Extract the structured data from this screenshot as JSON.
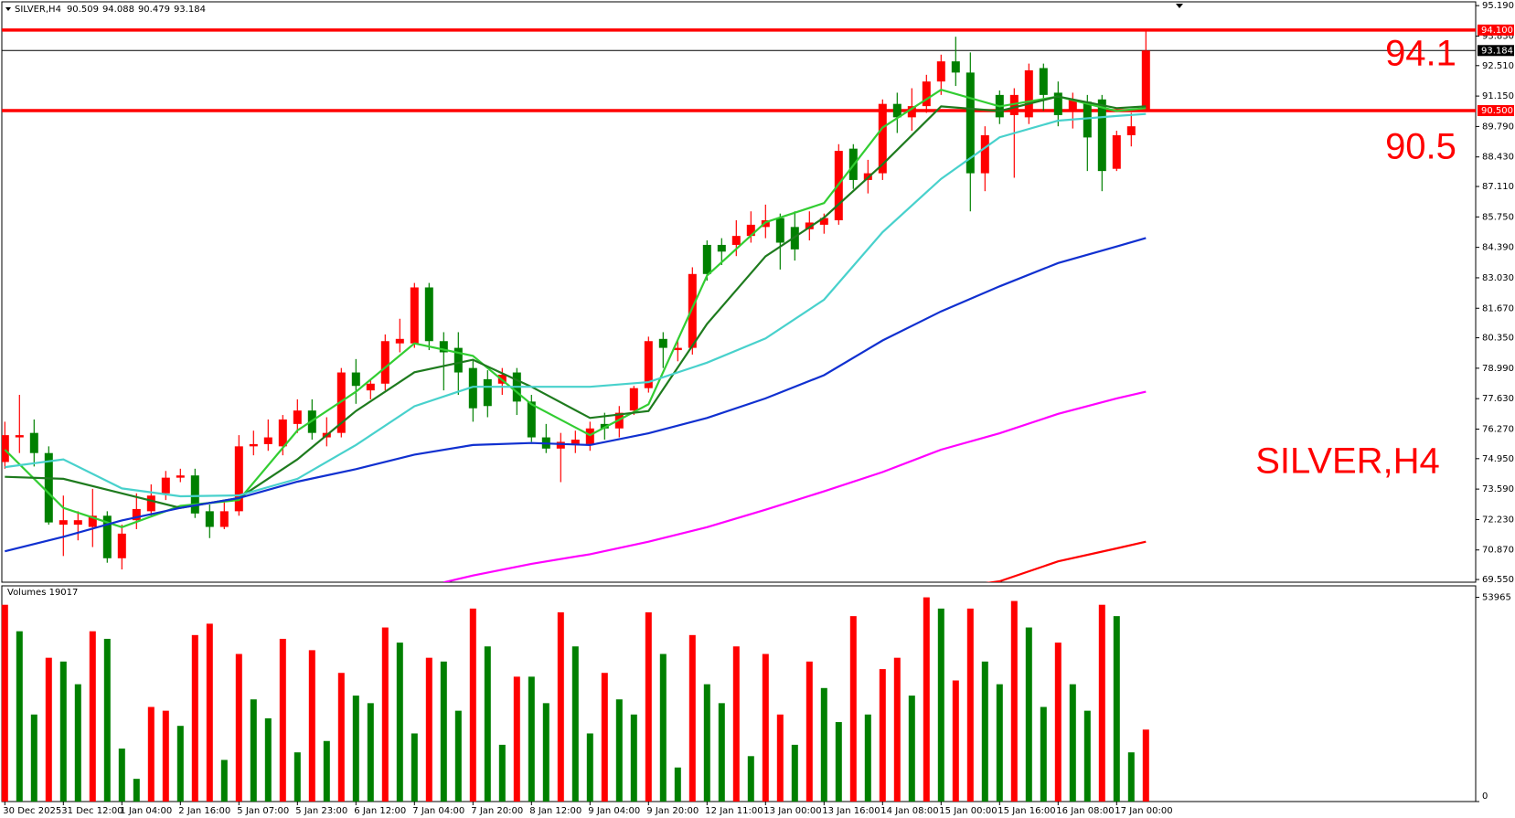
{
  "chart_data": {
    "type": "candlestick",
    "symbol": "SILVER,H4",
    "categories": [
      "30 Dec 2025",
      null,
      null,
      null,
      "31 Dec 12:00",
      null,
      null,
      null,
      "1 Jan 04:00",
      null,
      null,
      null,
      "2 Jan 16:00",
      null,
      null,
      null,
      "5 Jan 07:00",
      null,
      null,
      null,
      "5 Jan 23:00",
      null,
      null,
      null,
      "6 Jan 12:00",
      null,
      null,
      null,
      "7 Jan 04:00",
      null,
      null,
      null,
      "7 Jan 20:00",
      null,
      null,
      null,
      "8 Jan 12:00",
      null,
      null,
      null,
      "9 Jan 04:00",
      null,
      null,
      null,
      "9 Jan 20:00",
      null,
      null,
      null,
      "12 Jan 11:00",
      null,
      null,
      null,
      "13 Jan 00:00",
      null,
      null,
      null,
      "13 Jan 16:00",
      null,
      null,
      null,
      "14 Jan 08:00",
      null,
      null,
      null,
      "15 Jan 00:00",
      null,
      null,
      null,
      "15 Jan 16:00",
      null,
      null,
      null,
      "16 Jan 08:00",
      null,
      null,
      null,
      "17 Jan 00:00",
      null,
      null
    ],
    "open": [
      74.8,
      75.9,
      76.1,
      75.2,
      72.0,
      72.0,
      71.9,
      72.4,
      70.5,
      72.2,
      72.6,
      73.4,
      74.1,
      74.2,
      72.6,
      71.9,
      72.6,
      75.5,
      75.6,
      75.5,
      76.5,
      77.1,
      75.9,
      76.1,
      78.8,
      78.0,
      78.3,
      80.1,
      80.1,
      82.6,
      80.2,
      79.9,
      79.0,
      78.5,
      78.3,
      78.8,
      77.5,
      75.9,
      75.4,
      75.6,
      75.6,
      76.5,
      76.3,
      77.1,
      78.1,
      80.3,
      79.8,
      79.9,
      84.5,
      84.5,
      84.5,
      84.9,
      85.3,
      85.7,
      85.3,
      85.2,
      85.4,
      85.6,
      88.8,
      87.4,
      87.7,
      90.8,
      90.2,
      90.7,
      91.8,
      92.7,
      92.2,
      87.7,
      91.2,
      90.3,
      90.2,
      92.4,
      91.3,
      90.5,
      90.9,
      91.0,
      87.9,
      89.4,
      90.509
    ],
    "high": [
      76.6,
      77.8,
      76.7,
      75.5,
      73.3,
      72.6,
      73.6,
      72.6,
      72.0,
      73.4,
      73.8,
      74.4,
      74.5,
      74.5,
      72.9,
      73.0,
      76.0,
      76.2,
      76.7,
      76.9,
      77.6,
      77.6,
      76.8,
      79.0,
      79.4,
      78.5,
      80.5,
      81.2,
      82.8,
      82.8,
      80.6,
      80.6,
      79.4,
      78.9,
      79.0,
      79.0,
      77.8,
      76.5,
      76.1,
      76.2,
      76.6,
      77.0,
      77.3,
      78.2,
      80.4,
      80.6,
      80.3,
      83.5,
      84.7,
      84.8,
      85.6,
      86.0,
      86.3,
      85.9,
      86.0,
      86.0,
      85.9,
      89.0,
      89.0,
      88.3,
      91.0,
      91.3,
      91.5,
      92.1,
      93.0,
      93.8,
      93.1,
      89.8,
      91.4,
      91.5,
      92.6,
      92.6,
      91.8,
      91.3,
      91.2,
      91.2,
      89.6,
      90.4,
      94.088
    ],
    "low": [
      74.5,
      75.2,
      74.6,
      72.0,
      70.6,
      71.3,
      71.0,
      70.3,
      70.0,
      71.8,
      72.4,
      73.1,
      73.9,
      72.3,
      71.4,
      71.8,
      72.4,
      75.1,
      75.3,
      75.1,
      76.1,
      75.8,
      75.5,
      75.9,
      77.4,
      77.6,
      78.0,
      79.7,
      79.9,
      79.8,
      78.0,
      77.8,
      76.6,
      76.8,
      77.8,
      76.9,
      75.7,
      75.2,
      73.9,
      75.2,
      75.3,
      75.8,
      75.9,
      76.9,
      77.9,
      79.0,
      79.3,
      79.6,
      82.9,
      83.6,
      84.0,
      84.6,
      84.8,
      83.4,
      83.8,
      84.7,
      85.0,
      85.4,
      87.0,
      86.8,
      87.4,
      89.5,
      89.6,
      90.4,
      91.2,
      91.6,
      86.0,
      86.9,
      89.9,
      87.5,
      89.9,
      90.5,
      89.8,
      89.7,
      87.8,
      86.9,
      87.8,
      88.9,
      90.479
    ],
    "close": [
      76.0,
      76.0,
      75.2,
      72.1,
      72.2,
      72.2,
      72.4,
      70.5,
      71.6,
      72.7,
      73.3,
      74.1,
      74.2,
      72.5,
      71.9,
      72.6,
      75.5,
      75.6,
      75.9,
      76.7,
      77.1,
      76.1,
      76.1,
      78.8,
      78.2,
      78.3,
      80.2,
      80.3,
      82.6,
      80.2,
      79.7,
      78.8,
      77.2,
      77.3,
      78.7,
      77.5,
      75.9,
      75.4,
      75.7,
      75.8,
      76.3,
      76.3,
      77.0,
      78.1,
      80.2,
      79.9,
      79.9,
      83.2,
      83.2,
      84.2,
      84.9,
      85.4,
      85.6,
      84.6,
      84.3,
      85.5,
      85.7,
      88.7,
      87.4,
      87.7,
      90.8,
      90.2,
      90.7,
      91.8,
      92.7,
      92.2,
      87.7,
      89.4,
      90.2,
      91.2,
      92.3,
      91.2,
      90.3,
      91.0,
      89.3,
      87.8,
      89.4,
      89.8,
      93.184
    ],
    "up_color": "#ff0000",
    "down_color": "#008000",
    "ylim": [
      69.43,
      95.36
    ],
    "yticks": [
      {
        "value": 95.19,
        "label": "95.190"
      },
      {
        "value": 93.83,
        "label": "93.830"
      },
      {
        "value": 92.51,
        "label": "92.510"
      },
      {
        "value": 91.15,
        "label": "91.150"
      },
      {
        "value": 89.79,
        "label": "89.790"
      },
      {
        "value": 88.43,
        "label": "88.430"
      },
      {
        "value": 87.11,
        "label": "87.110"
      },
      {
        "value": 85.75,
        "label": "85.750"
      },
      {
        "value": 84.39,
        "label": "84.390"
      },
      {
        "value": 83.03,
        "label": "83.030"
      },
      {
        "value": 81.67,
        "label": "81.670"
      },
      {
        "value": 80.35,
        "label": "80.350"
      },
      {
        "value": 78.99,
        "label": "78.990"
      },
      {
        "value": 77.63,
        "label": "77.630"
      },
      {
        "value": 76.27,
        "label": "76.270"
      },
      {
        "value": 74.95,
        "label": "74.950"
      },
      {
        "value": 73.59,
        "label": "73.590"
      },
      {
        "value": 72.23,
        "label": "72.230"
      },
      {
        "value": 70.87,
        "label": "70.870"
      },
      {
        "value": 69.55,
        "label": "69.550"
      }
    ],
    "hlines": [
      {
        "value": 94.1,
        "label": "94.100",
        "color": "#ff0000"
      },
      {
        "value": 90.5,
        "label": "90.500",
        "color": "#ff0000"
      },
      {
        "value": 93.184,
        "color": "#000000"
      }
    ],
    "series": [
      {
        "color": "#32cd32",
        "x": [
          0,
          4,
          8,
          12,
          16,
          20,
          24,
          28,
          32,
          36,
          40,
          44,
          48,
          52,
          56,
          60,
          64,
          68,
          72,
          76,
          78
        ],
        "values": [
          75.35,
          72.75,
          71.89,
          72.84,
          73.1,
          76.21,
          77.94,
          80.1,
          79.54,
          77.38,
          76.0,
          77.38,
          83.13,
          85.51,
          86.37,
          89.74,
          91.43,
          90.69,
          91.13,
          90.48,
          90.61
        ]
      },
      {
        "color": "#1e7b1e",
        "x": [
          0,
          4,
          8,
          12,
          16,
          20,
          24,
          28,
          32,
          36,
          40,
          44,
          48,
          52,
          56,
          60,
          64,
          68,
          72,
          76,
          78
        ],
        "values": [
          74.14,
          74.05,
          73.4,
          72.75,
          73.19,
          74.92,
          77.08,
          78.81,
          79.37,
          78.16,
          76.77,
          77.08,
          80.97,
          83.99,
          85.72,
          88.1,
          90.69,
          90.48,
          91.13,
          90.61,
          90.69
        ]
      },
      {
        "color": "#48d1cc",
        "x": [
          0,
          4,
          8,
          12,
          16,
          20,
          24,
          28,
          32,
          36,
          40,
          44,
          48,
          52,
          56,
          60,
          64,
          68,
          72,
          76,
          78
        ],
        "values": [
          74.57,
          74.92,
          73.62,
          73.27,
          73.31,
          74.05,
          75.56,
          77.29,
          78.16,
          78.16,
          78.16,
          78.37,
          79.24,
          80.32,
          82.05,
          85.07,
          87.45,
          89.31,
          90.05,
          90.26,
          90.35
        ]
      },
      {
        "color": "#1030d0",
        "x": [
          0,
          4,
          8,
          12,
          16,
          20,
          24,
          28,
          32,
          36,
          40,
          44,
          48,
          52,
          56,
          60,
          64,
          68,
          72,
          76,
          78
        ],
        "values": [
          70.81,
          71.46,
          72.19,
          72.75,
          73.19,
          73.92,
          74.48,
          75.13,
          75.56,
          75.65,
          75.56,
          76.08,
          76.77,
          77.64,
          78.68,
          80.23,
          81.53,
          82.65,
          83.69,
          84.43,
          84.81
        ]
      },
      {
        "color": "#ff00ff",
        "x": [
          30,
          32,
          36,
          40,
          44,
          48,
          52,
          56,
          60,
          64,
          68,
          72,
          76,
          78
        ],
        "values": [
          69.42,
          69.73,
          70.25,
          70.68,
          71.24,
          71.89,
          72.67,
          73.49,
          74.35,
          75.35,
          76.08,
          76.95,
          77.64,
          77.94
        ]
      },
      {
        "color": "#ff0000",
        "x": [
          67,
          68,
          72,
          76,
          78
        ],
        "values": [
          69.38,
          69.47,
          70.36,
          70.94,
          71.24
        ]
      }
    ],
    "volume": {
      "title": "Volumes 19017",
      "values": [
        52000,
        45000,
        23000,
        38000,
        37000,
        31000,
        45000,
        43000,
        14000,
        6000,
        25000,
        24000,
        20000,
        44000,
        47000,
        11000,
        39000,
        27000,
        22000,
        43000,
        13000,
        40000,
        16000,
        34000,
        28000,
        26000,
        46000,
        42000,
        18000,
        38000,
        37000,
        24000,
        51000,
        41000,
        15000,
        33000,
        33000,
        26000,
        50000,
        41000,
        18000,
        34000,
        27000,
        23000,
        50000,
        39000,
        9000,
        44000,
        31000,
        26000,
        41000,
        12000,
        39000,
        23000,
        15000,
        37000,
        30000,
        21000,
        49000,
        23000,
        35000,
        38000,
        28000,
        53965,
        51000,
        32000,
        51000,
        37000,
        31000,
        53000,
        46000,
        25000,
        42000,
        31000,
        24000,
        52000,
        49000,
        13000,
        19017
      ],
      "colors": [
        "red",
        "green",
        "green",
        "red",
        "green",
        "green",
        "red",
        "green",
        "green",
        "green",
        "red",
        "red",
        "green",
        "red",
        "red",
        "green",
        "red",
        "green",
        "green",
        "red",
        "green",
        "red",
        "green",
        "red",
        "green",
        "green",
        "red",
        "green",
        "green",
        "red",
        "green",
        "green",
        "red",
        "green",
        "green",
        "red",
        "green",
        "green",
        "red",
        "green",
        "green",
        "red",
        "green",
        "green",
        "red",
        "green",
        "green",
        "red",
        "green",
        "green",
        "red",
        "green",
        "red",
        "red",
        "green",
        "red",
        "green",
        "green",
        "red",
        "green",
        "red",
        "red",
        "green",
        "red",
        "green",
        "red",
        "red",
        "green",
        "green",
        "red",
        "green",
        "green",
        "red",
        "green",
        "green",
        "red",
        "green",
        "green",
        "red"
      ],
      "ylim": [
        0,
        57000
      ],
      "yticks": [
        0,
        53965
      ]
    }
  }
}
